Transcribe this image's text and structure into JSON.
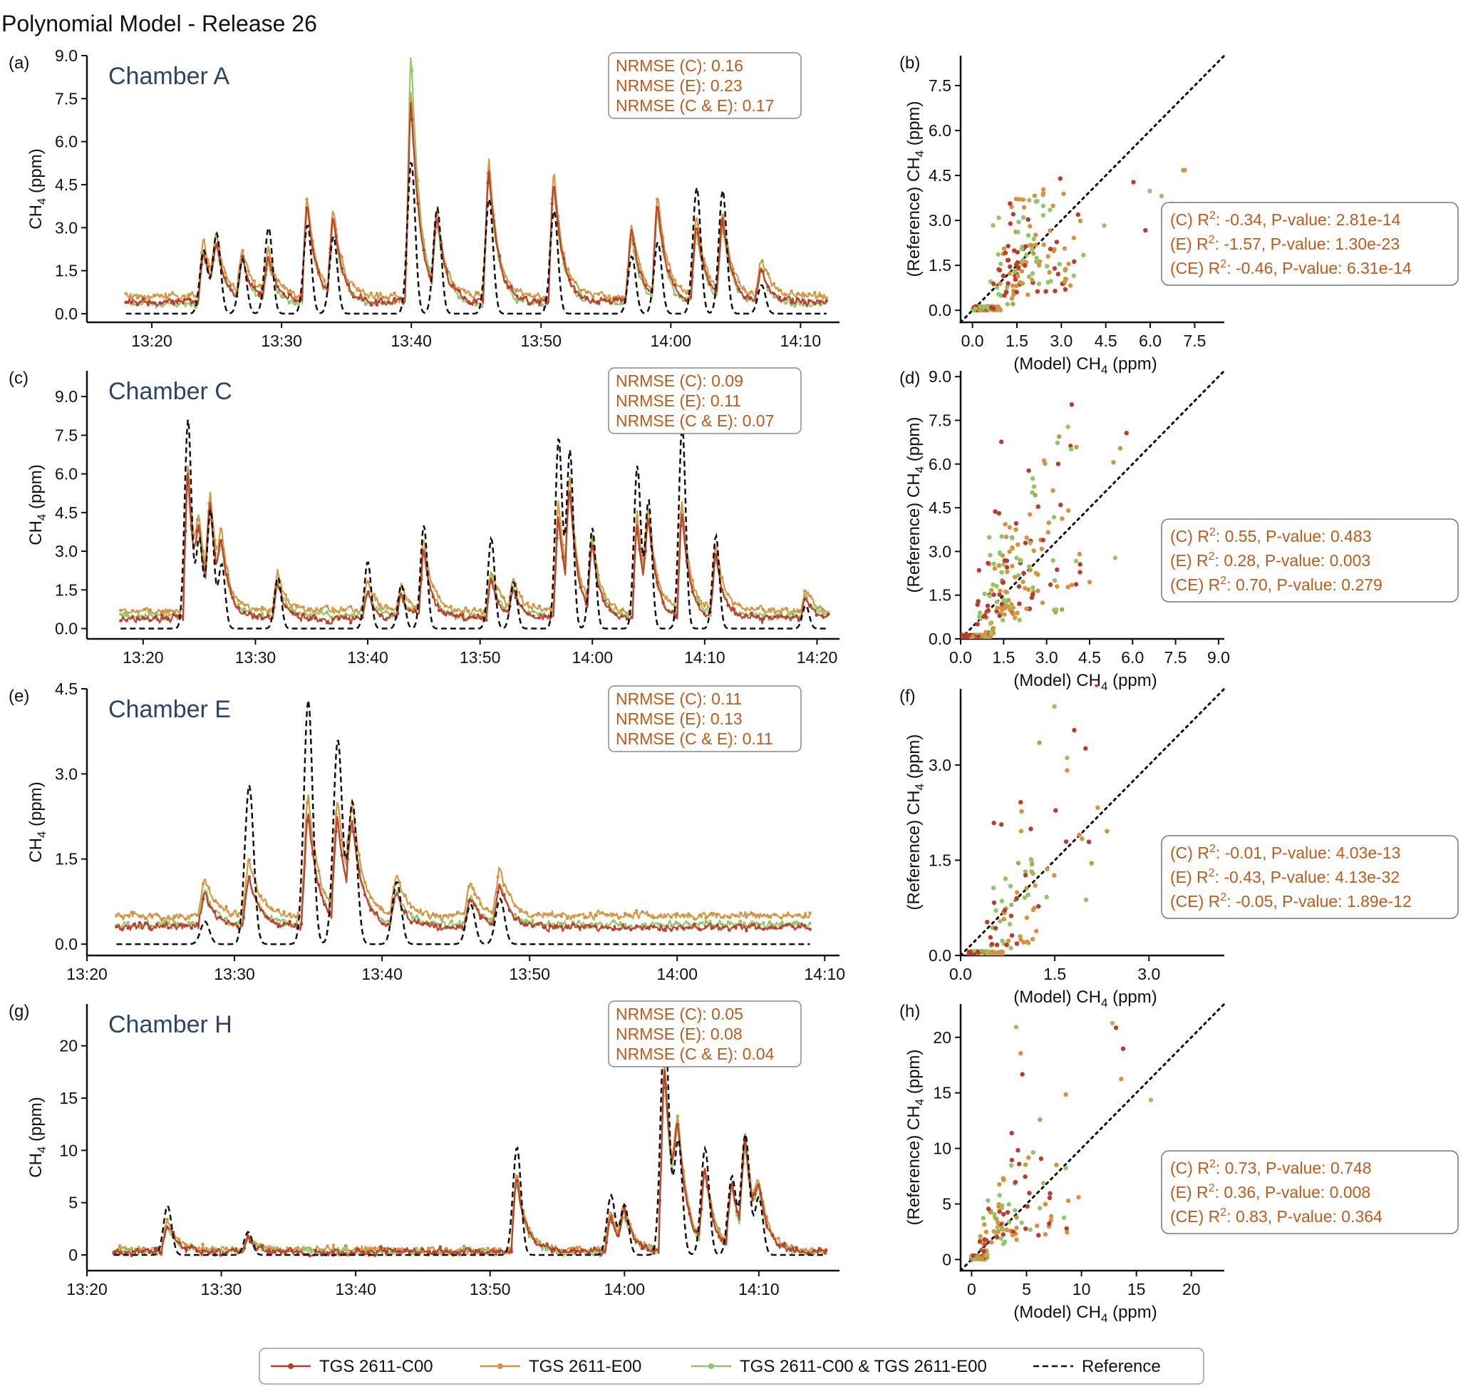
{
  "figure_title": "Polynomial Model - Release 26",
  "colors": {
    "c00": "#c0392b",
    "e00": "#d4943c",
    "ce": "#8fc667",
    "reference": "#111111",
    "annotation": "#c05a1a",
    "chamber_title": "#2c4566"
  },
  "legend": {
    "entries": [
      {
        "label": "TGS 2611-C00",
        "color": "#c0392b",
        "style": "solid-marker"
      },
      {
        "label": "TGS 2611-E00",
        "color": "#d4943c",
        "style": "solid-marker"
      },
      {
        "label": "TGS 2611-C00 & TGS 2611-E00",
        "color": "#8fc667",
        "style": "solid-marker"
      },
      {
        "label": "Reference",
        "color": "#111111",
        "style": "dashed"
      }
    ]
  },
  "chart_data": [
    {
      "panel": "(a)",
      "type": "line",
      "title": "Chamber A",
      "ylabel": "CH4 (ppm)",
      "xlabel": "",
      "x_start": "13:18",
      "x_end": "14:12",
      "xlim": [
        "13:15",
        "14:13"
      ],
      "xticks": [
        "13:20",
        "13:30",
        "13:40",
        "13:50",
        "14:00",
        "14:10"
      ],
      "ylim": [
        -0.3,
        9.0
      ],
      "yticks": [
        "0.0",
        "1.5",
        "3.0",
        "4.5",
        "6.0",
        "7.5",
        "9.0"
      ],
      "baseline": {
        "reference": 0.0,
        "c00": 0.4,
        "e00": 0.6,
        "ce": 0.35
      },
      "peaks": [
        {
          "t": "13:24",
          "reference": 2.2,
          "c00": 1.8,
          "e00": 2.0,
          "ce": 1.9
        },
        {
          "t": "13:25",
          "reference": 2.8,
          "c00": 1.6,
          "e00": 1.7,
          "ce": 1.6
        },
        {
          "t": "13:27",
          "reference": 1.9,
          "c00": 1.4,
          "e00": 1.5,
          "ce": 1.4
        },
        {
          "t": "13:29",
          "reference": 3.0,
          "c00": 1.5,
          "e00": 1.6,
          "ce": 1.4
        },
        {
          "t": "13:32",
          "reference": 3.1,
          "c00": 3.3,
          "e00": 3.4,
          "ce": 3.4
        },
        {
          "t": "13:34",
          "reference": 2.7,
          "c00": 2.8,
          "e00": 2.9,
          "ce": 2.7
        },
        {
          "t": "13:40",
          "reference": 5.3,
          "c00": 7.0,
          "e00": 7.1,
          "ce": 8.7
        },
        {
          "t": "13:42",
          "reference": 3.7,
          "c00": 2.5,
          "e00": 2.6,
          "ce": 2.4
        },
        {
          "t": "13:46",
          "reference": 4.0,
          "c00": 4.6,
          "e00": 4.7,
          "ce": 4.5
        },
        {
          "t": "13:51",
          "reference": 3.6,
          "c00": 4.2,
          "e00": 4.3,
          "ce": 4.1
        },
        {
          "t": "13:57",
          "reference": 2.0,
          "c00": 2.5,
          "e00": 2.6,
          "ce": 2.3
        },
        {
          "t": "13:59",
          "reference": 2.5,
          "c00": 3.2,
          "e00": 3.4,
          "ce": 3.0
        },
        {
          "t": "14:02",
          "reference": 4.4,
          "c00": 2.7,
          "e00": 2.8,
          "ce": 2.5
        },
        {
          "t": "14:04",
          "reference": 4.3,
          "c00": 2.8,
          "e00": 2.9,
          "ce": 2.6
        },
        {
          "t": "14:07",
          "reference": 1.0,
          "c00": 1.2,
          "e00": 1.3,
          "ce": 1.1
        }
      ],
      "annotation": [
        "NRMSE (C): 0.16",
        "NRMSE (E): 0.23",
        "NRMSE (C & E): 0.17"
      ]
    },
    {
      "panel": "(b)",
      "type": "scatter",
      "xlabel": "(Model) CH4 (ppm)",
      "ylabel": "(Reference) CH4 (ppm)",
      "xlim": [
        -0.4,
        8.5
      ],
      "ylim": [
        -0.4,
        8.5
      ],
      "xticks": [
        "0.0",
        "1.5",
        "3.0",
        "4.5",
        "6.0",
        "7.5"
      ],
      "yticks": [
        "0.0",
        "1.5",
        "3.0",
        "4.5",
        "6.0",
        "7.5"
      ],
      "identity_line": true,
      "stats": [
        {
          "label": "(C)",
          "r2": "-0.34",
          "p": "2.81e-14"
        },
        {
          "label": "(E)",
          "r2": "-1.57",
          "p": "1.30e-23"
        },
        {
          "label": "(CE)",
          "r2": "-0.46",
          "p": "6.31e-14"
        }
      ]
    },
    {
      "panel": "(c)",
      "type": "line",
      "title": "Chamber C",
      "ylabel": "CH4 (ppm)",
      "xlabel": "",
      "x_start": "13:18",
      "x_end": "14:21",
      "xlim": [
        "13:15",
        "14:22"
      ],
      "xticks": [
        "13:20",
        "13:30",
        "13:40",
        "13:50",
        "14:00",
        "14:10",
        "14:20"
      ],
      "ylim": [
        -0.4,
        10.0
      ],
      "yticks": [
        "0.0",
        "1.5",
        "3.0",
        "4.5",
        "6.0",
        "7.5",
        "9.0"
      ],
      "baseline": {
        "reference": 0.0,
        "c00": 0.4,
        "e00": 0.7,
        "ce": 0.5
      },
      "peaks": [
        {
          "t": "13:24",
          "reference": 8.1,
          "c00": 5.5,
          "e00": 5.7,
          "ce": 5.3
        },
        {
          "t": "13:25",
          "reference": 3.5,
          "c00": 2.2,
          "e00": 2.4,
          "ce": 2.1
        },
        {
          "t": "13:26",
          "reference": 4.6,
          "c00": 3.6,
          "e00": 3.7,
          "ce": 3.4
        },
        {
          "t": "13:27",
          "reference": 2.5,
          "c00": 2.0,
          "e00": 2.1,
          "ce": 1.8
        },
        {
          "t": "13:32",
          "reference": 2.0,
          "c00": 1.4,
          "e00": 1.5,
          "ce": 1.3
        },
        {
          "t": "13:40",
          "reference": 2.6,
          "c00": 1.1,
          "e00": 1.2,
          "ce": 1.0
        },
        {
          "t": "13:43",
          "reference": 1.7,
          "c00": 0.9,
          "e00": 1.0,
          "ce": 0.8
        },
        {
          "t": "13:45",
          "reference": 4.0,
          "c00": 2.6,
          "e00": 2.7,
          "ce": 2.5
        },
        {
          "t": "13:51",
          "reference": 3.5,
          "c00": 1.6,
          "e00": 1.7,
          "ce": 1.5
        },
        {
          "t": "13:53",
          "reference": 1.8,
          "c00": 1.1,
          "e00": 1.2,
          "ce": 1.0
        },
        {
          "t": "13:57",
          "reference": 7.4,
          "c00": 4.0,
          "e00": 4.2,
          "ce": 3.8
        },
        {
          "t": "13:58",
          "reference": 6.9,
          "c00": 4.1,
          "e00": 4.3,
          "ce": 3.9
        },
        {
          "t": "14:00",
          "reference": 3.9,
          "c00": 2.6,
          "e00": 2.7,
          "ce": 2.5
        },
        {
          "t": "14:04",
          "reference": 6.3,
          "c00": 3.6,
          "e00": 3.8,
          "ce": 3.4
        },
        {
          "t": "14:05",
          "reference": 5.0,
          "c00": 3.1,
          "e00": 3.2,
          "ce": 2.9
        },
        {
          "t": "14:08",
          "reference": 7.9,
          "c00": 4.0,
          "e00": 4.1,
          "ce": 3.9
        },
        {
          "t": "14:11",
          "reference": 3.6,
          "c00": 2.4,
          "e00": 2.5,
          "ce": 2.3
        },
        {
          "t": "14:19",
          "reference": 0.9,
          "c00": 0.7,
          "e00": 0.8,
          "ce": 0.7
        }
      ],
      "annotation": [
        "NRMSE (C): 0.09",
        "NRMSE (E): 0.11",
        "NRMSE (C & E): 0.07"
      ]
    },
    {
      "panel": "(d)",
      "type": "scatter",
      "xlabel": "(Model) CH4 (ppm)",
      "ylabel": "(Reference) CH4 (ppm)",
      "xlim": [
        0.0,
        9.2
      ],
      "ylim": [
        0.0,
        9.2
      ],
      "xticks": [
        "0.0",
        "1.5",
        "3.0",
        "4.5",
        "6.0",
        "7.5",
        "9.0"
      ],
      "yticks": [
        "0.0",
        "1.5",
        "3.0",
        "4.5",
        "6.0",
        "7.5",
        "9.0"
      ],
      "identity_line": true,
      "stats": [
        {
          "label": "(C)",
          "r2": "0.55",
          "p": "0.483"
        },
        {
          "label": "(E)",
          "r2": "0.28",
          "p": "0.003"
        },
        {
          "label": "(CE)",
          "r2": "0.70",
          "p": "0.279"
        }
      ]
    },
    {
      "panel": "(e)",
      "type": "line",
      "title": "Chamber E",
      "ylabel": "CH4 (ppm)",
      "xlabel": "",
      "x_start": "13:22",
      "x_end": "14:09",
      "xlim": [
        "13:20",
        "14:11"
      ],
      "xticks": [
        "13:20",
        "13:30",
        "13:40",
        "13:50",
        "14:00",
        "14:10"
      ],
      "ylim": [
        -0.2,
        4.5
      ],
      "yticks": [
        "0.0",
        "1.5",
        "3.0",
        "4.5"
      ],
      "baseline": {
        "reference": 0.0,
        "c00": 0.3,
        "e00": 0.5,
        "ce": 0.35
      },
      "peaks": [
        {
          "t": "13:28",
          "reference": 0.4,
          "c00": 0.6,
          "e00": 0.7,
          "ce": 0.6
        },
        {
          "t": "13:31",
          "reference": 2.8,
          "c00": 0.9,
          "e00": 1.0,
          "ce": 0.8
        },
        {
          "t": "13:35",
          "reference": 4.3,
          "c00": 2.0,
          "e00": 2.1,
          "ce": 1.9
        },
        {
          "t": "13:37",
          "reference": 3.6,
          "c00": 1.8,
          "e00": 1.9,
          "ce": 1.7
        },
        {
          "t": "13:38",
          "reference": 2.5,
          "c00": 1.4,
          "e00": 1.5,
          "ce": 1.3
        },
        {
          "t": "13:41",
          "reference": 1.1,
          "c00": 0.6,
          "e00": 0.7,
          "ce": 0.6
        },
        {
          "t": "13:46",
          "reference": 0.7,
          "c00": 0.5,
          "e00": 0.6,
          "ce": 0.5
        },
        {
          "t": "13:48",
          "reference": 0.8,
          "c00": 0.7,
          "e00": 0.8,
          "ce": 0.7
        }
      ],
      "annotation": [
        "NRMSE (C): 0.11",
        "NRMSE (E): 0.13",
        "NRMSE (C & E): 0.11"
      ]
    },
    {
      "panel": "(f)",
      "type": "scatter",
      "xlabel": "(Model) CH4 (ppm)",
      "ylabel": "(Reference) CH4 (ppm)",
      "xlim": [
        0.0,
        4.2
      ],
      "ylim": [
        0.0,
        4.2
      ],
      "xticks": [
        "0.0",
        "1.5",
        "3.0"
      ],
      "yticks": [
        "0.0",
        "1.5",
        "3.0"
      ],
      "identity_line": true,
      "stats": [
        {
          "label": "(C)",
          "r2": "-0.01",
          "p": "4.03e-13"
        },
        {
          "label": "(E)",
          "r2": "-0.43",
          "p": "4.13e-32"
        },
        {
          "label": "(CE)",
          "r2": "-0.05",
          "p": "1.89e-12"
        }
      ]
    },
    {
      "panel": "(g)",
      "type": "line",
      "title": "Chamber H",
      "ylabel": "CH4 (ppm)",
      "xlabel": "",
      "x_start": "13:22",
      "x_end": "14:15",
      "xlim": [
        "13:20",
        "14:16"
      ],
      "xticks": [
        "13:20",
        "13:30",
        "13:40",
        "13:50",
        "14:00",
        "14:10"
      ],
      "ylim": [
        -1.5,
        24.0
      ],
      "yticks": [
        "0",
        "5",
        "10",
        "15",
        "20"
      ],
      "baseline": {
        "reference": 0.0,
        "c00": 0.3,
        "e00": 0.5,
        "ce": 0.3
      },
      "peaks": [
        {
          "t": "13:26",
          "reference": 4.7,
          "c00": 2.6,
          "e00": 2.8,
          "ce": 2.4
        },
        {
          "t": "13:32",
          "reference": 2.2,
          "c00": 1.3,
          "e00": 1.4,
          "ce": 1.2
        },
        {
          "t": "13:52",
          "reference": 10.3,
          "c00": 7.0,
          "e00": 7.4,
          "ce": 6.6
        },
        {
          "t": "13:59",
          "reference": 5.7,
          "c00": 3.5,
          "e00": 3.8,
          "ce": 3.2
        },
        {
          "t": "14:00",
          "reference": 4.8,
          "c00": 3.0,
          "e00": 3.3,
          "ce": 2.8
        },
        {
          "t": "14:03",
          "reference": 22.5,
          "c00": 17.5,
          "e00": 18.0,
          "ce": 16.8
        },
        {
          "t": "14:04",
          "reference": 11.0,
          "c00": 8.0,
          "e00": 8.4,
          "ce": 7.6
        },
        {
          "t": "14:06",
          "reference": 10.2,
          "c00": 7.0,
          "e00": 7.3,
          "ce": 6.6
        },
        {
          "t": "14:08",
          "reference": 7.5,
          "c00": 6.0,
          "e00": 6.3,
          "ce": 5.7
        },
        {
          "t": "14:09",
          "reference": 11.5,
          "c00": 9.0,
          "e00": 9.4,
          "ce": 8.6
        },
        {
          "t": "14:10",
          "reference": 5.5,
          "c00": 4.0,
          "e00": 4.2,
          "ce": 3.8
        }
      ],
      "annotation": [
        "NRMSE (C): 0.05",
        "NRMSE (E): 0.08",
        "NRMSE (C & E): 0.04"
      ]
    },
    {
      "panel": "(h)",
      "type": "scatter",
      "xlabel": "(Model) CH4 (ppm)",
      "ylabel": "(Reference) CH4 (ppm)",
      "xlim": [
        -1.0,
        23.0
      ],
      "ylim": [
        -1.0,
        23.0
      ],
      "xticks": [
        "0",
        "5",
        "10",
        "15",
        "20"
      ],
      "yticks": [
        "0",
        "5",
        "10",
        "15",
        "20"
      ],
      "identity_line": true,
      "stats": [
        {
          "label": "(C)",
          "r2": "0.73",
          "p": "0.748"
        },
        {
          "label": "(E)",
          "r2": "0.36",
          "p": "0.008"
        },
        {
          "label": "(CE)",
          "r2": "0.83",
          "p": "0.364"
        }
      ]
    }
  ]
}
